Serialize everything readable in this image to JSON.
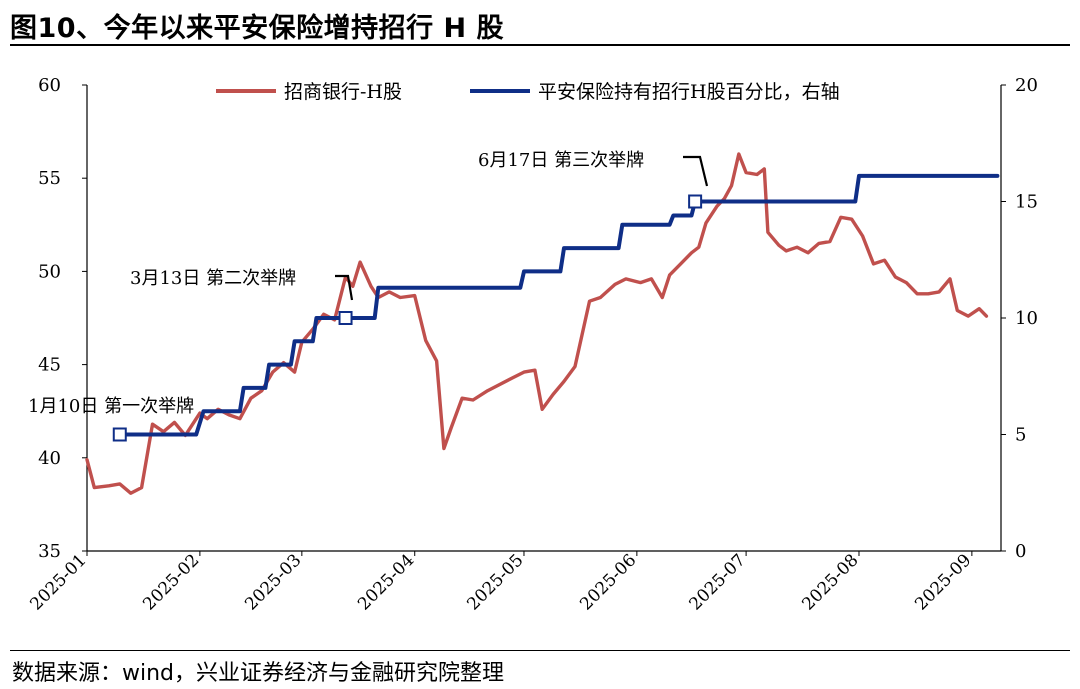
{
  "figure": {
    "title": "图10、今年以来平安保险增持招行 H 股",
    "source": "数据来源：wind，兴业证券经济与金融研究院整理"
  },
  "chart_data": {
    "type": "line",
    "x_tick_labels": [
      "2025-01",
      "2025-02",
      "2025-03",
      "2025-04",
      "2025-05",
      "2025-06",
      "2025-07",
      "2025-08",
      "2025-09"
    ],
    "y_left": {
      "range": [
        35,
        60
      ],
      "ticks": [
        35,
        40,
        45,
        50,
        55,
        60
      ]
    },
    "y_right": {
      "range": [
        0,
        20
      ],
      "ticks": [
        0,
        5,
        10,
        15,
        20
      ]
    },
    "grid": false,
    "legend_position": "top",
    "series": [
      {
        "name": "招商银行-H股",
        "axis": "left",
        "color": "#c0504d",
        "points": [
          [
            "2025-01-01",
            39.9
          ],
          [
            "2025-01-03",
            38.4
          ],
          [
            "2025-01-07",
            38.5
          ],
          [
            "2025-01-10",
            38.6
          ],
          [
            "2025-01-13",
            38.1
          ],
          [
            "2025-01-16",
            38.4
          ],
          [
            "2025-01-19",
            41.8
          ],
          [
            "2025-01-22",
            41.4
          ],
          [
            "2025-01-25",
            41.9
          ],
          [
            "2025-01-28",
            41.2
          ],
          [
            "2025-02-01",
            42.4
          ],
          [
            "2025-02-03",
            42.1
          ],
          [
            "2025-02-06",
            42.6
          ],
          [
            "2025-02-09",
            42.3
          ],
          [
            "2025-02-12",
            42.1
          ],
          [
            "2025-02-15",
            43.2
          ],
          [
            "2025-02-18",
            43.6
          ],
          [
            "2025-02-21",
            44.6
          ],
          [
            "2025-02-24",
            45.1
          ],
          [
            "2025-02-27",
            44.6
          ],
          [
            "2025-03-01",
            46.2
          ],
          [
            "2025-03-04",
            46.9
          ],
          [
            "2025-03-07",
            47.7
          ],
          [
            "2025-03-10",
            47.4
          ],
          [
            "2025-03-13",
            49.7
          ],
          [
            "2025-03-15",
            49.2
          ],
          [
            "2025-03-17",
            50.5
          ],
          [
            "2025-03-20",
            49.2
          ],
          [
            "2025-03-22",
            48.6
          ],
          [
            "2025-03-25",
            48.9
          ],
          [
            "2025-03-28",
            48.6
          ],
          [
            "2025-04-01",
            48.7
          ],
          [
            "2025-04-04",
            46.3
          ],
          [
            "2025-04-07",
            45.2
          ],
          [
            "2025-04-09",
            40.5
          ],
          [
            "2025-04-11",
            41.6
          ],
          [
            "2025-04-14",
            43.2
          ],
          [
            "2025-04-17",
            43.1
          ],
          [
            "2025-04-21",
            43.6
          ],
          [
            "2025-04-24",
            43.9
          ],
          [
            "2025-04-28",
            44.3
          ],
          [
            "2025-05-01",
            44.6
          ],
          [
            "2025-05-04",
            44.7
          ],
          [
            "2025-05-06",
            42.6
          ],
          [
            "2025-05-09",
            43.4
          ],
          [
            "2025-05-12",
            44.1
          ],
          [
            "2025-05-15",
            44.9
          ],
          [
            "2025-05-19",
            48.4
          ],
          [
            "2025-05-22",
            48.6
          ],
          [
            "2025-05-26",
            49.3
          ],
          [
            "2025-05-29",
            49.6
          ],
          [
            "2025-06-02",
            49.4
          ],
          [
            "2025-06-05",
            49.6
          ],
          [
            "2025-06-08",
            48.6
          ],
          [
            "2025-06-10",
            49.8
          ],
          [
            "2025-06-13",
            50.4
          ],
          [
            "2025-06-16",
            51.0
          ],
          [
            "2025-06-18",
            51.3
          ],
          [
            "2025-06-20",
            52.6
          ],
          [
            "2025-06-23",
            53.5
          ],
          [
            "2025-06-25",
            53.9
          ],
          [
            "2025-06-27",
            54.6
          ],
          [
            "2025-06-29",
            56.3
          ],
          [
            "2025-07-01",
            55.3
          ],
          [
            "2025-07-04",
            55.2
          ],
          [
            "2025-07-06",
            55.5
          ],
          [
            "2025-07-07",
            52.1
          ],
          [
            "2025-07-10",
            51.4
          ],
          [
            "2025-07-12",
            51.1
          ],
          [
            "2025-07-15",
            51.3
          ],
          [
            "2025-07-18",
            51.0
          ],
          [
            "2025-07-21",
            51.5
          ],
          [
            "2025-07-24",
            51.6
          ],
          [
            "2025-07-27",
            52.9
          ],
          [
            "2025-07-30",
            52.8
          ],
          [
            "2025-08-02",
            51.9
          ],
          [
            "2025-08-05",
            50.4
          ],
          [
            "2025-08-08",
            50.6
          ],
          [
            "2025-08-11",
            49.7
          ],
          [
            "2025-08-14",
            49.4
          ],
          [
            "2025-08-17",
            48.8
          ],
          [
            "2025-08-20",
            48.8
          ],
          [
            "2025-08-23",
            48.9
          ],
          [
            "2025-08-26",
            49.6
          ],
          [
            "2025-08-28",
            47.9
          ],
          [
            "2025-08-31",
            47.6
          ],
          [
            "2025-09-03",
            48.0
          ],
          [
            "2025-09-05",
            47.6
          ]
        ]
      },
      {
        "name": "平安保险持有招行H股百分比，右轴",
        "axis": "right",
        "color": "#0f2e87",
        "points": [
          [
            "2025-01-10",
            5.0
          ],
          [
            "2025-01-31",
            5.0
          ],
          [
            "2025-02-02",
            6.0
          ],
          [
            "2025-02-12",
            6.0
          ],
          [
            "2025-02-13",
            7.0
          ],
          [
            "2025-02-19",
            7.0
          ],
          [
            "2025-02-20",
            8.0
          ],
          [
            "2025-02-26",
            8.0
          ],
          [
            "2025-02-27",
            9.0
          ],
          [
            "2025-03-04",
            9.0
          ],
          [
            "2025-03-05",
            10.0
          ],
          [
            "2025-03-13",
            10.0
          ],
          [
            "2025-03-21",
            10.0
          ],
          [
            "2025-03-22",
            11.3
          ],
          [
            "2025-04-30",
            11.3
          ],
          [
            "2025-05-01",
            12.0
          ],
          [
            "2025-05-11",
            12.0
          ],
          [
            "2025-05-12",
            13.0
          ],
          [
            "2025-05-27",
            13.0
          ],
          [
            "2025-05-28",
            14.0
          ],
          [
            "2025-06-10",
            14.0
          ],
          [
            "2025-06-11",
            14.4
          ],
          [
            "2025-06-16",
            14.4
          ],
          [
            "2025-06-17",
            15.0
          ],
          [
            "2025-07-31",
            15.0
          ],
          [
            "2025-08-01",
            16.1
          ],
          [
            "2025-09-08",
            16.1
          ]
        ]
      }
    ],
    "annotations": [
      {
        "label": "1月10日 第一次举牌",
        "date": "2025-01-10",
        "value": 5.0
      },
      {
        "label": "3月13日 第二次举牌",
        "date": "2025-03-13",
        "value": 10.0
      },
      {
        "label": "6月17日 第三次举牌",
        "date": "2025-06-17",
        "value": 15.0
      }
    ]
  }
}
